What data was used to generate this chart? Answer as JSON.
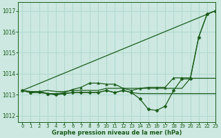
{
  "xlabel": "Graphe pression niveau de la mer (hPa)",
  "xlim": [
    -0.5,
    23
  ],
  "ylim": [
    1011.7,
    1017.4
  ],
  "yticks": [
    1012,
    1013,
    1014,
    1015,
    1016,
    1017
  ],
  "xticks": [
    0,
    1,
    2,
    3,
    4,
    5,
    6,
    7,
    8,
    9,
    10,
    11,
    12,
    13,
    14,
    15,
    16,
    17,
    18,
    19,
    20,
    21,
    22,
    23
  ],
  "background_color": "#cce8e0",
  "grid_color": "#b0d8d0",
  "line_color": "#1a5c1a",
  "series": [
    {
      "x": [
        0,
        23
      ],
      "y": [
        1013.2,
        1017.0
      ],
      "marker": null,
      "linewidth": 0.9
    },
    {
      "x": [
        0,
        1,
        2,
        3,
        4,
        5,
        6,
        7,
        8,
        9,
        10,
        11,
        12,
        13,
        14,
        15,
        16,
        17,
        18,
        19,
        20,
        21,
        22,
        23
      ],
      "y": [
        1013.2,
        1013.1,
        1013.15,
        1013.05,
        1013.05,
        1013.1,
        1013.25,
        1013.35,
        1013.55,
        1013.55,
        1013.5,
        1013.5,
        1013.3,
        1013.2,
        1013.3,
        1013.35,
        1013.35,
        1013.35,
        1013.8,
        1013.8,
        1013.8,
        1015.75,
        1016.85,
        1017.0
      ],
      "marker": "^",
      "markersize": 2.5,
      "linewidth": 0.9
    },
    {
      "x": [
        0,
        1,
        2,
        3,
        4,
        5,
        6,
        7,
        8,
        9,
        10,
        11,
        12,
        13,
        14,
        15,
        16,
        17,
        18,
        19,
        20,
        21,
        22,
        23
      ],
      "y": [
        1013.2,
        1013.15,
        1013.15,
        1013.2,
        1013.15,
        1013.15,
        1013.2,
        1013.2,
        1013.2,
        1013.2,
        1013.3,
        1013.3,
        1013.3,
        1013.3,
        1013.3,
        1013.3,
        1013.3,
        1013.3,
        1013.3,
        1013.3,
        1013.78,
        1013.78,
        1013.78,
        1013.78
      ],
      "marker": null,
      "markersize": 0,
      "linewidth": 0.9
    },
    {
      "x": [
        0,
        1,
        2,
        3,
        4,
        5,
        6,
        7,
        8,
        9,
        10,
        11,
        12,
        13,
        14,
        15,
        16,
        17,
        18,
        19,
        20,
        21,
        22,
        23
      ],
      "y": [
        1013.2,
        1013.1,
        1013.1,
        1013.05,
        1013.0,
        1013.05,
        1013.1,
        1013.1,
        1013.1,
        1013.1,
        1013.2,
        1013.1,
        1013.2,
        1013.1,
        1013.05,
        1013.05,
        1013.05,
        1013.05,
        1013.05,
        1013.05,
        1013.05,
        1013.05,
        1013.05,
        1013.05
      ],
      "marker": null,
      "markersize": 0,
      "linewidth": 0.9
    },
    {
      "x": [
        0,
        1,
        2,
        3,
        4,
        5,
        6,
        7,
        8,
        9,
        10,
        11,
        12,
        13,
        14,
        15,
        16,
        17,
        18,
        19,
        20,
        21,
        22,
        23
      ],
      "y": [
        1013.2,
        1013.1,
        1013.15,
        1013.05,
        1013.0,
        1013.05,
        1013.1,
        1013.1,
        1013.1,
        1013.1,
        1013.2,
        1013.1,
        1013.2,
        1013.1,
        1012.8,
        1012.3,
        1012.25,
        1012.45,
        1013.2,
        1013.75,
        1013.75,
        1015.75,
        1016.85,
        1017.0
      ],
      "marker": "D",
      "markersize": 2.5,
      "linewidth": 0.9
    }
  ]
}
